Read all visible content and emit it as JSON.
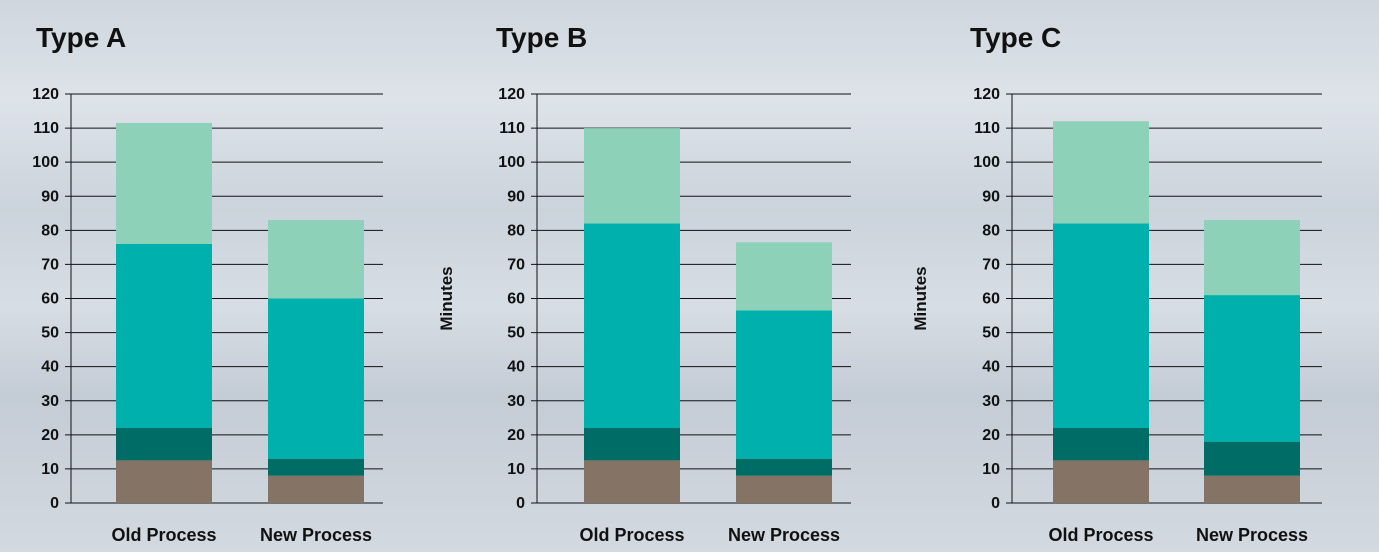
{
  "chart_data": [
    {
      "type": "bar",
      "stacked": true,
      "title": "Type A",
      "ylabel": "",
      "ylim": [
        0,
        120
      ],
      "yticks": [
        "0",
        "10",
        "20",
        "30",
        "40",
        "50",
        "60",
        "70",
        "80",
        "90",
        "100",
        "110",
        "120"
      ],
      "categories": [
        "Old Process",
        "New Process"
      ],
      "series": [
        {
          "values": [
            12.5,
            8
          ],
          "color": "#857466"
        },
        {
          "values": [
            9.5,
            5
          ],
          "color": "#006c66"
        },
        {
          "values": [
            54,
            47
          ],
          "color": "#00b0ac"
        },
        {
          "values": [
            35.5,
            23
          ],
          "color": "#8dd1b8"
        }
      ]
    },
    {
      "type": "bar",
      "stacked": true,
      "title": "Type B",
      "ylabel": "Minutes",
      "ylim": [
        0,
        120
      ],
      "yticks": [
        "0",
        "10",
        "20",
        "30",
        "40",
        "50",
        "60",
        "70",
        "80",
        "90",
        "100",
        "110",
        "120"
      ],
      "categories": [
        "Old Process",
        "New Process"
      ],
      "series": [
        {
          "values": [
            12.5,
            8
          ],
          "color": "#857466"
        },
        {
          "values": [
            9.5,
            5
          ],
          "color": "#006c66"
        },
        {
          "values": [
            60,
            43.5
          ],
          "color": "#00b0ac"
        },
        {
          "values": [
            28,
            20
          ],
          "color": "#8dd1b8"
        }
      ]
    },
    {
      "type": "bar",
      "stacked": true,
      "title": "Type C",
      "ylabel": "Minutes",
      "ylim": [
        0,
        120
      ],
      "yticks": [
        "0",
        "10",
        "20",
        "30",
        "40",
        "50",
        "60",
        "70",
        "80",
        "90",
        "100",
        "110",
        "120"
      ],
      "categories": [
        "Old Process",
        "New Process"
      ],
      "series": [
        {
          "values": [
            12.5,
            8
          ],
          "color": "#857466"
        },
        {
          "values": [
            9.5,
            10
          ],
          "color": "#006c66"
        },
        {
          "values": [
            60,
            43
          ],
          "color": "#00b0ac"
        },
        {
          "values": [
            30,
            22
          ],
          "color": "#8dd1b8"
        }
      ]
    }
  ]
}
